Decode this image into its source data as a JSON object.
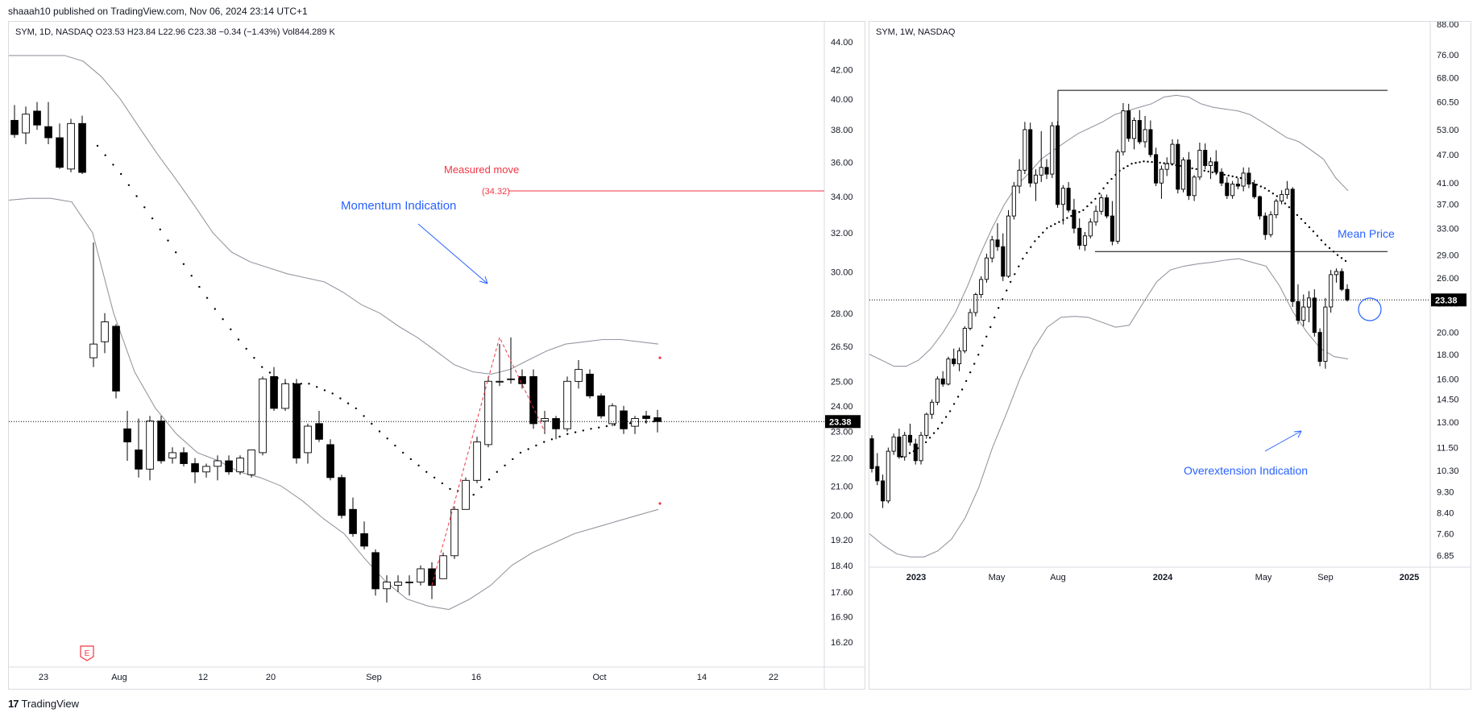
{
  "header": {
    "published": "shaaah10 published on TradingView.com, Nov 06, 2024 23:14 UTC+1"
  },
  "footer": {
    "brand": "TradingView",
    "logo_glyph": "17"
  },
  "colors": {
    "up_fill": "#ffffff",
    "down_fill": "#000000",
    "band": "#9598a1",
    "mean": "#000000",
    "annotation_blue": "#2962ff",
    "annotation_red": "#f23645",
    "last_price_bg": "#000000"
  },
  "chart_data": [
    {
      "type": "candlestick",
      "legend": "SYM, 1D, NASDAQ  O23.53  H23.84  L22.96  C23.38  −0.34 (−1.43%)  Vol844.289 K",
      "y_scale": "log",
      "ylim": [
        15.6,
        45.0
      ],
      "y_ticks": [
        "44.00",
        "42.00",
        "40.00",
        "38.00",
        "36.00",
        "34.00",
        "32.00",
        "30.00",
        "28.00",
        "26.50",
        "25.00",
        "24.00",
        "23.00",
        "22.00",
        "21.00",
        "20.00",
        "19.20",
        "18.40",
        "17.60",
        "16.90",
        "16.20"
      ],
      "x_tick_labels": [
        "23",
        "Aug",
        "12",
        "20",
        "Sep",
        "16",
        "Oct",
        "14",
        "22"
      ],
      "last_price": "23.38",
      "earnings_marker": "E",
      "annotations": {
        "momentum": "Momentum Indication",
        "measured_move": "Measured move",
        "measured_value": "(34.32)"
      },
      "candles": [
        [
          38.6,
          39.6,
          37.5,
          37.7
        ],
        [
          37.8,
          39.5,
          37.1,
          39.0
        ],
        [
          39.2,
          39.8,
          38.0,
          38.3
        ],
        [
          38.2,
          39.8,
          37.1,
          37.5
        ],
        [
          37.5,
          38.4,
          35.6,
          35.7
        ],
        [
          35.6,
          38.7,
          35.4,
          38.4
        ],
        [
          38.4,
          38.9,
          35.3,
          35.4
        ],
        [
          26.0,
          31.5,
          25.6,
          26.6
        ],
        [
          26.7,
          28.0,
          26.2,
          27.6
        ],
        [
          27.4,
          27.5,
          24.3,
          24.6
        ],
        [
          23.1,
          23.8,
          21.9,
          22.6
        ],
        [
          22.3,
          23.5,
          21.3,
          21.6
        ],
        [
          21.6,
          23.6,
          21.2,
          23.4
        ],
        [
          23.4,
          23.6,
          21.8,
          21.9
        ],
        [
          22.0,
          22.4,
          21.8,
          22.2
        ],
        [
          22.2,
          22.4,
          21.7,
          21.8
        ],
        [
          21.8,
          22.0,
          21.1,
          21.5
        ],
        [
          21.5,
          21.8,
          21.3,
          21.7
        ],
        [
          21.7,
          22.1,
          21.2,
          21.9
        ],
        [
          21.9,
          22.1,
          21.4,
          21.5
        ],
        [
          21.5,
          22.1,
          21.4,
          22.0
        ],
        [
          21.4,
          22.3,
          21.3,
          22.3
        ],
        [
          22.2,
          25.2,
          22.1,
          25.1
        ],
        [
          25.2,
          25.6,
          23.8,
          23.9
        ],
        [
          23.9,
          25.1,
          23.8,
          24.9
        ],
        [
          24.9,
          25.1,
          21.8,
          22.0
        ],
        [
          22.2,
          23.3,
          21.8,
          23.2
        ],
        [
          23.3,
          23.8,
          22.6,
          22.7
        ],
        [
          22.5,
          22.7,
          21.2,
          21.3
        ],
        [
          21.3,
          21.4,
          19.9,
          20.0
        ],
        [
          20.2,
          20.6,
          19.3,
          19.4
        ],
        [
          19.4,
          19.8,
          18.9,
          19.0
        ],
        [
          18.8,
          18.9,
          17.5,
          17.7
        ],
        [
          17.7,
          18.1,
          17.3,
          17.9
        ],
        [
          17.8,
          18.1,
          17.6,
          17.9
        ],
        [
          17.9,
          18.1,
          17.5,
          17.9
        ],
        [
          17.9,
          18.4,
          17.8,
          18.3
        ],
        [
          18.3,
          18.5,
          17.4,
          17.8
        ],
        [
          18.0,
          18.8,
          18.0,
          18.7
        ],
        [
          18.7,
          20.3,
          18.6,
          20.2
        ],
        [
          20.2,
          21.3,
          20.2,
          21.2
        ],
        [
          21.2,
          22.8,
          21.1,
          22.6
        ],
        [
          22.5,
          25.2,
          22.4,
          25.0
        ],
        [
          25.0,
          26.6,
          24.8,
          25.0
        ],
        [
          25.1,
          26.9,
          24.9,
          25.1
        ],
        [
          25.2,
          25.5,
          24.7,
          24.9
        ],
        [
          25.2,
          25.5,
          23.1,
          23.3
        ],
        [
          23.4,
          23.8,
          22.9,
          23.5
        ],
        [
          23.5,
          23.6,
          22.7,
          23.1
        ],
        [
          23.1,
          25.2,
          23.0,
          25.0
        ],
        [
          25.0,
          25.9,
          24.7,
          25.5
        ],
        [
          25.3,
          25.5,
          24.3,
          24.4
        ],
        [
          24.4,
          24.5,
          23.5,
          23.6
        ],
        [
          23.3,
          24.1,
          23.2,
          24.0
        ],
        [
          23.8,
          24.0,
          22.9,
          23.1
        ],
        [
          23.2,
          23.6,
          22.9,
          23.5
        ],
        [
          23.6,
          23.8,
          23.3,
          23.5
        ],
        [
          23.53,
          23.84,
          22.96,
          23.38
        ]
      ],
      "band_upper": [
        43.0,
        43.0,
        43.0,
        43.0,
        42.6,
        41.5,
        40.0,
        38.2,
        36.5,
        35.0,
        33.5,
        32.0,
        31.0,
        30.5,
        30.2,
        29.9,
        29.7,
        29.5,
        29.0,
        28.4,
        28.0,
        27.4,
        26.9,
        26.3,
        25.7,
        25.4,
        25.3,
        25.5,
        25.9,
        26.3,
        26.6,
        26.7,
        26.8,
        26.8,
        26.7,
        26.6
      ],
      "band_lower": [
        33.8,
        33.9,
        33.9,
        33.7,
        32.0,
        28.0,
        25.4,
        23.9,
        22.9,
        22.2,
        21.9,
        21.5,
        21.3,
        21.0,
        20.5,
        19.9,
        19.4,
        18.6,
        17.9,
        17.4,
        17.2,
        17.1,
        17.4,
        17.8,
        18.4,
        18.8,
        19.1,
        19.4,
        19.6,
        19.8,
        20.0,
        20.2
      ],
      "mean_line": [
        37.0,
        35.3,
        33.4,
        31.6,
        29.8,
        28.2,
        26.8,
        25.6,
        24.9,
        24.9,
        24.5,
        23.9,
        23.0,
        22.2,
        21.5,
        20.9,
        20.7,
        21.5,
        22.2,
        22.6,
        22.9,
        23.1,
        23.25,
        23.35,
        23.4
      ]
    },
    {
      "type": "candlestick",
      "legend": "SYM, 1W, NASDAQ",
      "y_scale": "log",
      "ylim": [
        6.6,
        89.0
      ],
      "y_ticks": [
        "88.00",
        "76.00",
        "68.00",
        "60.50",
        "53.00",
        "47.00",
        "41.00",
        "37.00",
        "33.00",
        "29.00",
        "26.00",
        "23.00",
        "20.00",
        "18.00",
        "16.00",
        "14.50",
        "13.00",
        "11.50",
        "10.30",
        "9.30",
        "8.40",
        "7.60",
        "6.85"
      ],
      "x_tick_labels": [
        "2023",
        "May",
        "Aug",
        "2024",
        "May",
        "Sep",
        "2025"
      ],
      "last_price": "23.38",
      "annotations": {
        "mean_price": "Mean Price",
        "overextension": "Overextension Indication"
      },
      "candles": [
        [
          12.0,
          12.2,
          10.2,
          10.4
        ],
        [
          10.5,
          11.2,
          9.6,
          9.8
        ],
        [
          9.8,
          10.1,
          8.6,
          8.9
        ],
        [
          8.9,
          11.5,
          8.8,
          11.3
        ],
        [
          11.3,
          12.3,
          11.1,
          12.1
        ],
        [
          12.1,
          12.6,
          10.9,
          11.0
        ],
        [
          11.0,
          12.4,
          10.8,
          12.2
        ],
        [
          12.2,
          12.9,
          11.6,
          11.8
        ],
        [
          11.7,
          12.0,
          10.6,
          10.8
        ],
        [
          10.8,
          12.4,
          10.6,
          12.2
        ],
        [
          12.2,
          13.6,
          12.0,
          13.5
        ],
        [
          13.5,
          14.5,
          13.2,
          14.3
        ],
        [
          14.3,
          16.2,
          14.1,
          16.0
        ],
        [
          16.0,
          16.6,
          15.4,
          15.6
        ],
        [
          15.6,
          17.8,
          15.5,
          17.6
        ],
        [
          17.6,
          18.5,
          17.0,
          17.2
        ],
        [
          17.2,
          18.6,
          16.6,
          18.3
        ],
        [
          18.3,
          20.6,
          18.1,
          20.4
        ],
        [
          20.4,
          22.4,
          20.2,
          22.0
        ],
        [
          22.0,
          24.2,
          21.6,
          24.0
        ],
        [
          24.0,
          26.2,
          23.6,
          25.8
        ],
        [
          25.8,
          29.2,
          25.4,
          28.6
        ],
        [
          28.6,
          31.8,
          28.0,
          31.2
        ],
        [
          31.2,
          33.8,
          29.6,
          30.2
        ],
        [
          30.2,
          32.2,
          25.6,
          26.2
        ],
        [
          26.2,
          36.0,
          26.0,
          35.0
        ],
        [
          35.0,
          41.2,
          34.4,
          40.4
        ],
        [
          40.4,
          46.0,
          39.0,
          43.6
        ],
        [
          43.6,
          55.0,
          42.8,
          53.0
        ],
        [
          53.0,
          54.8,
          40.2,
          41.0
        ],
        [
          41.0,
          43.8,
          37.6,
          42.6
        ],
        [
          42.6,
          52.6,
          41.2,
          44.2
        ],
        [
          44.2,
          46.0,
          41.8,
          42.8
        ],
        [
          42.8,
          55.0,
          42.0,
          54.0
        ],
        [
          54.0,
          55.2,
          36.4,
          37.0
        ],
        [
          37.0,
          40.6,
          33.6,
          40.0
        ],
        [
          40.0,
          41.2,
          35.6,
          36.0
        ],
        [
          36.0,
          38.0,
          32.2,
          33.0
        ],
        [
          33.0,
          34.6,
          29.8,
          30.4
        ],
        [
          30.4,
          32.4,
          29.6,
          31.8
        ],
        [
          31.8,
          34.6,
          31.4,
          34.0
        ],
        [
          34.0,
          36.8,
          33.4,
          35.8
        ],
        [
          35.8,
          38.8,
          35.2,
          38.2
        ],
        [
          38.2,
          38.8,
          34.6,
          35.0
        ],
        [
          35.0,
          37.6,
          30.4,
          31.0
        ],
        [
          31.0,
          48.2,
          30.6,
          47.6
        ],
        [
          47.6,
          60.2,
          46.8,
          58.0
        ],
        [
          58.0,
          60.0,
          50.0,
          50.8
        ],
        [
          50.8,
          56.2,
          48.2,
          55.4
        ],
        [
          55.4,
          58.2,
          49.4,
          50.0
        ],
        [
          50.0,
          56.6,
          48.6,
          53.0
        ],
        [
          53.0,
          55.4,
          46.4,
          47.0
        ],
        [
          47.0,
          48.6,
          40.4,
          41.0
        ],
        [
          41.0,
          44.6,
          38.0,
          43.8
        ],
        [
          43.8,
          46.4,
          42.4,
          45.0
        ],
        [
          45.0,
          50.6,
          44.6,
          49.4
        ],
        [
          49.4,
          50.6,
          39.0,
          39.8
        ],
        [
          39.8,
          46.4,
          39.2,
          45.8
        ],
        [
          45.8,
          47.6,
          37.8,
          38.6
        ],
        [
          38.6,
          42.6,
          37.6,
          42.2
        ],
        [
          42.2,
          49.8,
          41.6,
          48.0
        ],
        [
          48.0,
          49.6,
          43.8,
          44.6
        ],
        [
          44.6,
          46.4,
          41.8,
          45.4
        ],
        [
          45.4,
          48.0,
          42.6,
          43.2
        ],
        [
          43.2,
          44.0,
          40.4,
          41.0
        ],
        [
          41.0,
          42.2,
          38.0,
          38.6
        ],
        [
          38.6,
          41.4,
          38.0,
          40.8
        ],
        [
          40.8,
          42.0,
          39.8,
          40.4
        ],
        [
          40.4,
          44.2,
          39.4,
          43.0
        ],
        [
          43.0,
          44.2,
          40.0,
          40.8
        ],
        [
          40.8,
          41.6,
          38.0,
          38.4
        ],
        [
          38.4,
          38.6,
          34.4,
          35.0
        ],
        [
          35.0,
          35.6,
          31.2,
          32.0
        ],
        [
          32.0,
          35.8,
          31.6,
          35.2
        ],
        [
          35.2,
          38.0,
          34.6,
          37.6
        ],
        [
          37.6,
          39.6,
          37.0,
          38.8
        ],
        [
          38.8,
          41.4,
          38.0,
          39.8
        ],
        [
          39.8,
          40.2,
          22.6,
          23.2
        ],
        [
          23.2,
          25.2,
          20.8,
          21.2
        ],
        [
          21.2,
          24.0,
          20.6,
          22.6
        ],
        [
          22.6,
          24.4,
          21.0,
          23.6
        ],
        [
          23.6,
          24.6,
          19.6,
          20.0
        ],
        [
          20.0,
          20.4,
          17.0,
          17.4
        ],
        [
          17.4,
          23.6,
          16.8,
          22.6
        ],
        [
          22.6,
          27.0,
          22.0,
          26.4
        ],
        [
          26.4,
          27.2,
          25.4,
          26.8
        ],
        [
          26.8,
          27.2,
          24.4,
          24.6
        ],
        [
          24.6,
          25.2,
          23.2,
          23.38
        ]
      ],
      "band_upper": [
        18.0,
        17.5,
        17.0,
        17.0,
        17.5,
        18.5,
        20.0,
        22.0,
        25.0,
        29.0,
        33.0,
        37.0,
        40.5,
        43.0,
        46.0,
        48.0,
        50.0,
        52.0,
        53.5,
        55.0,
        57.0,
        58.0,
        59.0,
        60.0,
        62.0,
        62.5,
        62.0,
        60.0,
        59.0,
        58.5,
        58.0,
        57.0,
        55.0,
        53.0,
        51.0,
        50.0,
        48.0,
        46.0,
        42.0,
        39.5
      ],
      "band_lower": [
        7.6,
        7.2,
        6.9,
        6.8,
        6.8,
        7.0,
        7.4,
        8.2,
        9.5,
        11.5,
        13.5,
        16.0,
        18.5,
        20.5,
        21.5,
        21.6,
        21.5,
        21.0,
        20.5,
        20.7,
        23.0,
        25.5,
        27.0,
        27.5,
        27.8,
        28.0,
        28.3,
        28.5,
        28.0,
        27.5,
        25.0,
        22.0,
        20.0,
        18.5,
        17.8,
        17.6
      ],
      "mean_line": [
        11.0,
        11.3,
        11.8,
        12.6,
        13.7,
        15.2,
        17.2,
        19.6,
        22.5,
        25.5,
        28.5,
        31.0,
        33.0,
        34.0,
        35.0,
        36.0,
        38.0,
        41.0,
        43.5,
        45.0,
        45.5,
        45.3,
        45.0,
        44.5,
        44.0,
        43.5,
        43.0,
        42.5,
        42.0,
        41.0,
        40.0,
        38.5,
        36.5,
        34.5,
        32.5,
        30.5,
        29.0,
        27.8
      ],
      "range_high": 64.0,
      "range_low": 29.5
    }
  ]
}
